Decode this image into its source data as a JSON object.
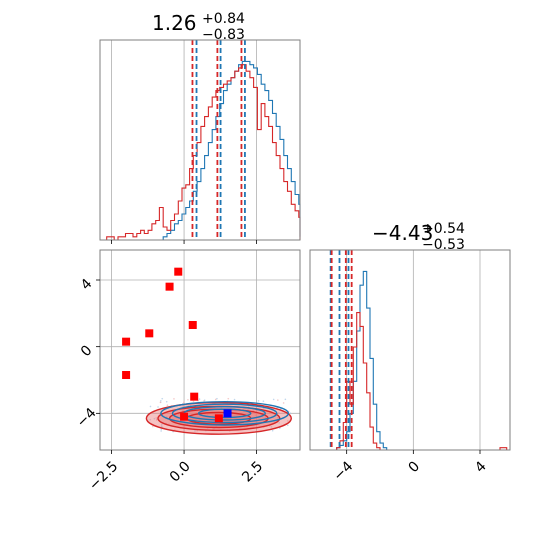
{
  "colors": {
    "red": "#d62728",
    "blue": "#1f77b4",
    "red_fill": "#e8797a",
    "grid": "#b0b0b0",
    "marker_red": "#ff0000",
    "marker_blue": "#0000ff",
    "background": "#ffffff"
  },
  "chart_data": [
    {
      "type": "histogram",
      "panel": "top-left",
      "title": {
        "base": "1.26",
        "sup": "+0.84",
        "sub": "−0.83"
      },
      "xlim": [
        -2.9,
        4.0
      ],
      "grid": true,
      "bin_edges_start": -2.8,
      "bin_width": 0.13,
      "series": [
        {
          "color": "blue",
          "counts": [
            0,
            0,
            0,
            0,
            0,
            0,
            0,
            0,
            0,
            0,
            0,
            0,
            0,
            0,
            0,
            0,
            1,
            2,
            3,
            5,
            6,
            8,
            10,
            12,
            15,
            18,
            22,
            26,
            30,
            34,
            38,
            42,
            46,
            48,
            50,
            52,
            54,
            55,
            55,
            54,
            53,
            51,
            48,
            46,
            43,
            39,
            35,
            31,
            26,
            22,
            18,
            14,
            11,
            8,
            6,
            4,
            3,
            2,
            1,
            1
          ]
        },
        {
          "color": "red",
          "counts": [
            0,
            1,
            1,
            0,
            1,
            1,
            2,
            2,
            1,
            2,
            3,
            2,
            3,
            5,
            6,
            10,
            4,
            3,
            6,
            8,
            12,
            16,
            17,
            22,
            26,
            30,
            35,
            38,
            41,
            44,
            46,
            47,
            48,
            49,
            50,
            52,
            53,
            54,
            52,
            50,
            47,
            34,
            42,
            38,
            35,
            30,
            26,
            22,
            18,
            15,
            11,
            9,
            7,
            5,
            4,
            3,
            2,
            1,
            1,
            0
          ]
        }
      ],
      "quantiles": [
        {
          "color": "blue",
          "values": [
            0.43,
            1.26,
            2.1
          ]
        },
        {
          "color": "red",
          "values": [
            0.29,
            1.15,
            1.98
          ]
        }
      ],
      "x_ticks": [
        -2.5,
        0.0,
        2.5
      ]
    },
    {
      "type": "contour",
      "panel": "bottom-left",
      "xlim": [
        -2.9,
        4.0
      ],
      "ylim": [
        -6.2,
        5.8
      ],
      "grid": true,
      "x_ticks": [
        "−2.5",
        "0.0",
        "2.5"
      ],
      "y_ticks": [
        "−4",
        "0",
        "4"
      ],
      "x_tick_values": [
        -2.5,
        0.0,
        2.5
      ],
      "y_tick_values": [
        -4,
        0,
        4
      ],
      "contours": [
        {
          "color": "red",
          "center": [
            1.2,
            -4.3
          ],
          "radii": [
            [
              1.1,
              0.35
            ],
            [
              1.7,
              0.55
            ],
            [
              2.1,
              0.72
            ],
            [
              2.5,
              0.95
            ]
          ]
        },
        {
          "color": "blue",
          "center": [
            1.4,
            -4.0
          ],
          "radii": [
            [
              0.9,
              0.25
            ],
            [
              1.4,
              0.4
            ],
            [
              1.8,
              0.55
            ],
            [
              2.2,
              0.7
            ]
          ]
        }
      ],
      "red_points": [
        [
          -0.2,
          4.5
        ],
        [
          -0.5,
          3.6
        ],
        [
          -2.0,
          0.3
        ],
        [
          -1.2,
          0.8
        ],
        [
          0.3,
          1.3
        ],
        [
          -2.0,
          -1.7
        ],
        [
          0.35,
          -3.0
        ],
        [
          0.0,
          -4.2
        ],
        [
          1.2,
          -4.3
        ]
      ],
      "blue_points": [
        [
          1.5,
          -4.0
        ]
      ]
    },
    {
      "type": "histogram",
      "panel": "bottom-right",
      "title": {
        "base": "−4.43",
        "sup": "+0.54",
        "sub": "−0.53"
      },
      "xlim": [
        -6.2,
        5.8
      ],
      "grid": true,
      "x_ticks": [
        "−4",
        "0",
        "4"
      ],
      "x_tick_values": [
        -4,
        0,
        4
      ],
      "bin_edges_start": -6.2,
      "bin_width": 0.2,
      "series": [
        {
          "color": "blue",
          "counts": [
            0,
            0,
            0,
            0,
            0,
            0,
            0,
            0,
            1,
            2,
            4,
            8,
            16,
            30,
            52,
            72,
            78,
            62,
            40,
            20,
            8,
            3,
            1,
            0,
            0,
            0,
            0,
            0,
            0,
            0,
            0,
            0,
            0,
            0,
            0,
            0,
            0,
            0,
            0,
            0,
            0,
            0,
            0,
            0,
            0,
            0,
            0,
            0,
            0,
            0,
            0,
            0,
            0,
            0,
            0,
            0,
            0,
            0,
            0,
            0
          ]
        },
        {
          "color": "red",
          "counts": [
            0,
            0,
            0,
            0,
            0,
            0,
            0,
            0,
            1,
            4,
            12,
            30,
            20,
            45,
            60,
            54,
            38,
            25,
            10,
            3,
            1,
            0,
            0,
            0,
            0,
            0,
            0,
            0,
            0,
            0,
            0,
            0,
            0,
            0,
            0,
            0,
            0,
            0,
            0,
            0,
            0,
            0,
            0,
            0,
            0,
            0,
            0,
            0,
            0,
            0,
            0,
            0,
            0,
            0,
            0,
            0,
            0,
            1,
            1,
            0
          ]
        }
      ],
      "quantiles": [
        {
          "color": "blue",
          "values": [
            -4.96,
            -4.43,
            -3.89
          ]
        },
        {
          "color": "red",
          "values": [
            -4.9,
            -4.05,
            -3.7
          ]
        }
      ]
    }
  ]
}
